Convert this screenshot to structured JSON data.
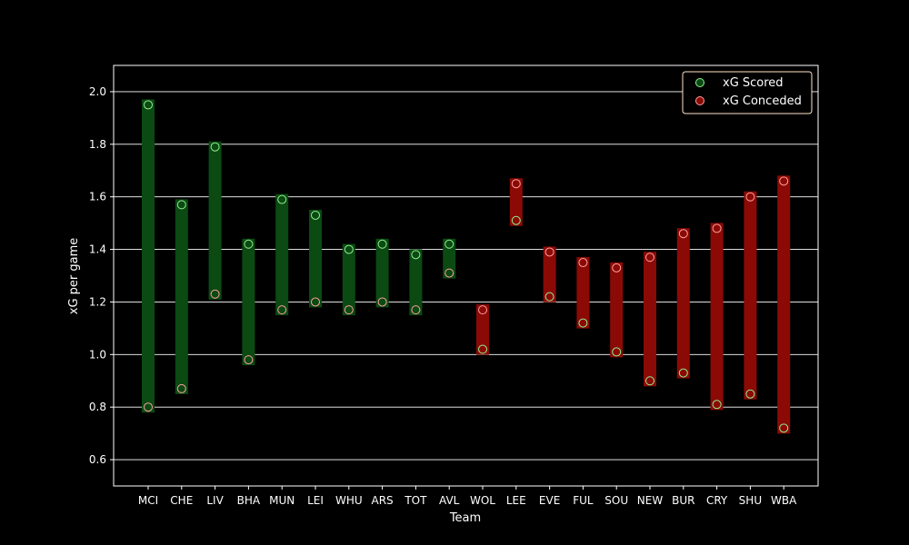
{
  "chart_data": {
    "type": "range-bar",
    "xlabel": "Team",
    "ylabel": "xG per game",
    "ylim": [
      0.5,
      2.1
    ],
    "yticks": [
      "0.6",
      "0.8",
      "1.0",
      "1.2",
      "1.4",
      "1.6",
      "1.8",
      "2.0"
    ],
    "grid": "horizontal",
    "legend_position": "top-right",
    "categories": [
      "MCI",
      "CHE",
      "LIV",
      "BHA",
      "MUN",
      "LEI",
      "WHU",
      "ARS",
      "TOT",
      "AVL",
      "WOL",
      "LEE",
      "EVE",
      "FUL",
      "SOU",
      "NEW",
      "BUR",
      "CRY",
      "SHU",
      "WBA"
    ],
    "series": [
      {
        "name": "xG Scored",
        "values": [
          1.95,
          1.57,
          1.79,
          1.42,
          1.59,
          1.53,
          1.4,
          1.42,
          1.38,
          1.42,
          1.02,
          1.51,
          1.22,
          1.12,
          1.01,
          0.9,
          0.93,
          0.81,
          0.85,
          0.72
        ]
      },
      {
        "name": "xG Conceded",
        "values": [
          0.8,
          0.87,
          1.23,
          0.98,
          1.17,
          1.2,
          1.17,
          1.2,
          1.17,
          1.31,
          1.17,
          1.65,
          1.39,
          1.35,
          1.33,
          1.37,
          1.46,
          1.48,
          1.6,
          1.66
        ]
      }
    ],
    "colors": {
      "background": "#000000",
      "axes": "#ffffff",
      "scored_range": "#0b4a12",
      "conceded_range": "#8b0a06",
      "scored_marker": "#90ee90",
      "conceded_marker": "#ff9f9f"
    }
  }
}
